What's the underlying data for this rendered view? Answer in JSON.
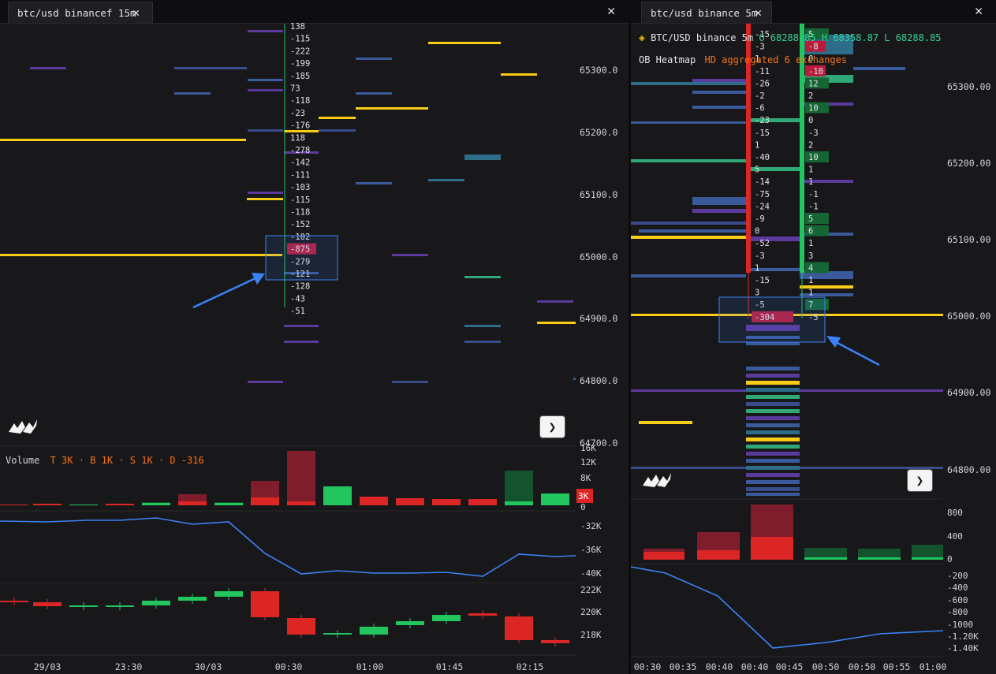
{
  "left": {
    "tab_title": "btc/usd binancef 15m",
    "price_axis": [
      "65300.0",
      "65200.0",
      "65100.0",
      "65000.0",
      "64900.0",
      "64800.0",
      "64700.0"
    ],
    "fp_values": [
      "138",
      "-115",
      "-222",
      "-199",
      "-185",
      "73",
      "-118",
      "-23",
      "-176",
      "118",
      "-278",
      "-142",
      "-111",
      "-103",
      "-115",
      "-118",
      "-152",
      "-102",
      "-875",
      "-279",
      "-121",
      "-128",
      "-43",
      "-51"
    ],
    "fp_highlight": "-875",
    "volume": {
      "label": "Volume",
      "t": "T 3K",
      "b": "B 1K",
      "s": "S 1K",
      "d": "D -316",
      "badge": "3K",
      "axis": [
        "16K",
        "12K",
        "8K",
        "4K",
        "0"
      ]
    },
    "delta_axis": [
      "-32K",
      "-36K",
      "-40K"
    ],
    "cvd_axis": [
      "222K",
      "220K",
      "218K"
    ],
    "time_axis": [
      "29/03",
      "23:30",
      "30/03",
      "00:30",
      "01:00",
      "01:45",
      "02:15"
    ]
  },
  "right": {
    "tab_title": "btc/usd binance 5m",
    "legend": {
      "symbol": "BTC/USD binance 5m",
      "ohlc": "O 68288.85 H 68358.87 L 68288.85",
      "heatmap": "OB Heatmap",
      "heatmap_desc": "HD aggregated 6 exchanges"
    },
    "price_axis": [
      "65300.00",
      "65200.00",
      "65100.00",
      "65000.00",
      "64900.00",
      "64800.00"
    ],
    "fp_col1": [
      "-15",
      "-3",
      "1",
      "-11",
      "-26",
      "-2",
      "-6",
      "-23",
      "-15",
      "1",
      "-40",
      "5",
      "-14",
      "-75",
      "-24",
      "-9",
      "0",
      "-52",
      "-3",
      "1",
      "-15",
      "3",
      "-5",
      "-304"
    ],
    "fp_col2": [
      "5",
      "-8",
      "0",
      "-10",
      "12",
      "2",
      "10",
      "0",
      "-3",
      "2",
      "10",
      "1",
      "1",
      "-1",
      "-1",
      "5",
      "6",
      "1",
      "3",
      "4",
      "1",
      "1",
      "7",
      "-5"
    ],
    "volume_axis": [
      "800",
      "400",
      "0"
    ],
    "delta_axis": [
      "-200",
      "-400",
      "-600",
      "-800",
      "-1000",
      "-1.20K",
      "-1.40K"
    ],
    "time_axis": [
      "00:30",
      "00:35",
      "00:40",
      "00:40",
      "00:45",
      "00:50",
      "00:50",
      "00:55",
      "01:00"
    ]
  }
}
